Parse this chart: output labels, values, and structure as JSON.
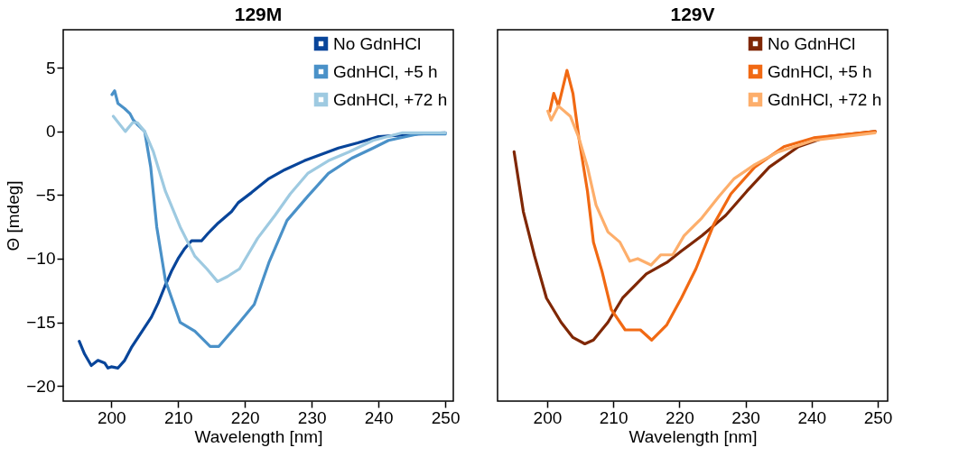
{
  "chart_data": [
    {
      "type": "line",
      "title": "129M",
      "xlabel": "Wavelength [nm]",
      "ylabel": "Θ [mdeg]",
      "xlim": [
        192.8,
        251.2
      ],
      "ylim": [
        -21.2,
        8
      ],
      "xticks": [
        200,
        210,
        220,
        230,
        240,
        250
      ],
      "yticks": [
        -20,
        -15,
        -10,
        -5,
        0,
        5
      ],
      "grid": false,
      "legend": "top right",
      "marker": "none",
      "line_style": "solid",
      "series": [
        {
          "name": "No GdnHCl",
          "color": "#08459a",
          "x": [
            195.2,
            196,
            197,
            198,
            199,
            199.5,
            200,
            201,
            202,
            203,
            204,
            205,
            206,
            207,
            208,
            209,
            210,
            211,
            212,
            213.5,
            214.5,
            216,
            218,
            219,
            221,
            223.6,
            226,
            228.9,
            232,
            234,
            236.9,
            240,
            243,
            246,
            250
          ],
          "values": [
            -16.5,
            -17.5,
            -18.4,
            -18.0,
            -18.2,
            -18.6,
            -18.5,
            -18.6,
            -18.0,
            -17.0,
            -16.2,
            -15.4,
            -14.6,
            -13.5,
            -12.2,
            -11.0,
            -10.0,
            -9.2,
            -8.6,
            -8.6,
            -8.0,
            -7.2,
            -6.3,
            -5.6,
            -4.8,
            -3.7,
            -3.0,
            -2.3,
            -1.7,
            -1.3,
            -0.9,
            -0.4,
            -0.3,
            -0.2,
            -0.1
          ]
        },
        {
          "name": "GdnHCl, +5 h",
          "color": "#4a91c8",
          "x": [
            200.1,
            200.5,
            201,
            202,
            202.8,
            203.3,
            204,
            205,
            205.9,
            206.8,
            208.1,
            210.3,
            212.5,
            214.8,
            216.1,
            219.2,
            221.4,
            223.6,
            226.3,
            229.4,
            232.5,
            236,
            239.2,
            241.5,
            245.9,
            250
          ],
          "values": [
            2.9,
            3.2,
            2.2,
            1.8,
            1.4,
            0.9,
            0.5,
            0.0,
            -2.8,
            -7.5,
            -11.7,
            -15.0,
            -15.7,
            -16.9,
            -16.9,
            -15.0,
            -13.6,
            -10.3,
            -7.0,
            -5.1,
            -3.3,
            -2.1,
            -1.3,
            -0.7,
            -0.2,
            -0.2
          ]
        },
        {
          "name": "GdnHCl, +72 h",
          "color": "#9ecae1",
          "x": [
            200.3,
            202.1,
            203.2,
            203.9,
            205,
            206.3,
            208.1,
            210.3,
            212.5,
            214.3,
            215.9,
            217.4,
            219.2,
            221.9,
            224.5,
            226.8,
            229.4,
            232.5,
            235.6,
            239.2,
            243.6,
            250
          ],
          "values": [
            1.2,
            0.0,
            0.7,
            0.7,
            0.0,
            -1.6,
            -4.7,
            -7.5,
            -9.8,
            -10.8,
            -11.8,
            -11.4,
            -10.8,
            -8.4,
            -6.6,
            -4.9,
            -3.3,
            -2.3,
            -1.6,
            -0.7,
            -0.1,
            -0.1
          ]
        }
      ]
    },
    {
      "type": "line",
      "title": "129V",
      "xlabel": "Wavelength [nm]",
      "xlim": [
        192.5,
        251.5
      ],
      "ylim": [
        -21.2,
        8
      ],
      "xticks": [
        200,
        210,
        220,
        230,
        240,
        250
      ],
      "yticks": [
        -20,
        -15,
        -10,
        -5,
        0,
        5
      ],
      "tick_labels": "x",
      "grid": false,
      "legend": "top right",
      "marker": "none",
      "line_style": "solid",
      "series": [
        {
          "name": "No GdnHCl",
          "color": "#7f2704",
          "x": [
            195.0,
            196.4,
            198.1,
            199.9,
            202.1,
            203.9,
            205.7,
            207.0,
            209.2,
            211.4,
            215,
            218.1,
            220.3,
            223.4,
            227,
            230.2,
            233.6,
            238,
            242.4,
            249.6
          ],
          "values": [
            -1.6,
            -6.3,
            -9.8,
            -13.1,
            -15.0,
            -16.2,
            -16.7,
            -16.4,
            -15.0,
            -13.1,
            -11.2,
            -10.3,
            -9.4,
            -8.2,
            -6.6,
            -4.7,
            -2.8,
            -1.2,
            -0.4,
            0.0
          ]
        },
        {
          "name": "GdnHCl, +5 h",
          "color": "#f16913",
          "x": [
            200.4,
            201,
            201.7,
            203,
            203.9,
            204.8,
            206.1,
            207,
            208.3,
            209.7,
            211.8,
            214.1,
            215.8,
            218.1,
            220.3,
            222.5,
            225.2,
            227.8,
            231.4,
            235.8,
            240.3,
            249.6
          ],
          "values": [
            1.6,
            3.0,
            2.0,
            4.8,
            3.0,
            -0.5,
            -4.7,
            -8.7,
            -11.0,
            -14.0,
            -15.6,
            -15.6,
            -16.4,
            -15.2,
            -13.1,
            -10.8,
            -7.3,
            -4.9,
            -2.8,
            -1.2,
            -0.5,
            0.0
          ]
        },
        {
          "name": "GdnHCl, +72 h",
          "color": "#fdae6b",
          "x": [
            200.1,
            200.6,
            201.7,
            203.5,
            204.8,
            206.1,
            207.4,
            209.2,
            211,
            212.5,
            213.7,
            215.7,
            217.2,
            219,
            220.7,
            223.4,
            226,
            228.3,
            231.4,
            235,
            240.3,
            249.6
          ],
          "values": [
            1.6,
            0.9,
            2.0,
            1.2,
            -0.5,
            -2.8,
            -5.8,
            -7.9,
            -8.7,
            -10.2,
            -10.0,
            -10.5,
            -9.7,
            -9.7,
            -8.2,
            -6.8,
            -5.1,
            -3.7,
            -2.6,
            -1.6,
            -0.7,
            -0.1
          ]
        }
      ]
    }
  ]
}
